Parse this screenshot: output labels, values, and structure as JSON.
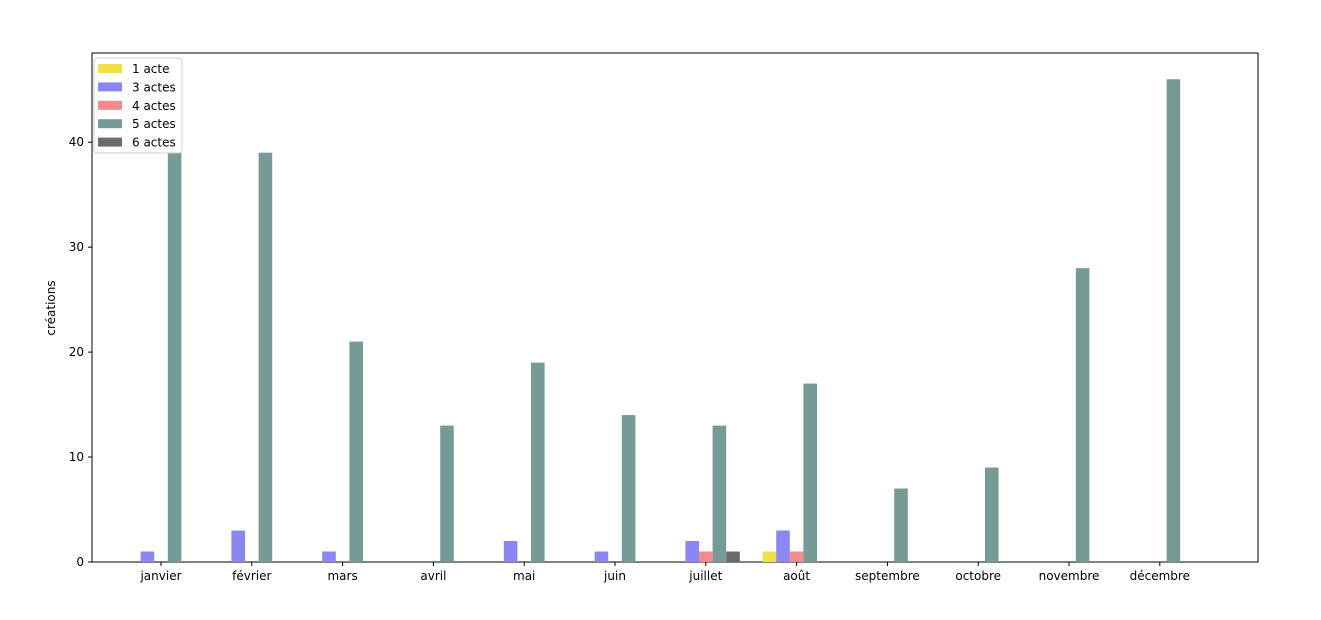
{
  "chart_data": {
    "type": "bar",
    "title": "",
    "xlabel": "",
    "ylabel": "créations",
    "ylim": [
      0,
      48.5
    ],
    "yticks": [
      0,
      10,
      20,
      30,
      40
    ],
    "grid": false,
    "legend_position": "top-left",
    "categories": [
      "janvier",
      "février",
      "mars",
      "avril",
      "mai",
      "juin",
      "juillet",
      "août",
      "septembre",
      "octobre",
      "novembre",
      "décembre"
    ],
    "series": [
      {
        "name": "1 acte",
        "color": "#f0e14a",
        "values": [
          0,
          0,
          0,
          0,
          0,
          0,
          0,
          1,
          0,
          0,
          0,
          0
        ]
      },
      {
        "name": "3 actes",
        "color": "#8c86f2",
        "values": [
          1,
          3,
          1,
          0,
          2,
          1,
          2,
          3,
          0,
          0,
          0,
          0
        ]
      },
      {
        "name": "4 actes",
        "color": "#f08c8c",
        "values": [
          0,
          0,
          0,
          0,
          0,
          0,
          1,
          1,
          0,
          0,
          0,
          0
        ]
      },
      {
        "name": "5 actes",
        "color": "#769b97",
        "values": [
          39,
          39,
          21,
          13,
          19,
          14,
          13,
          17,
          7,
          9,
          28,
          46
        ]
      },
      {
        "name": "6 actes",
        "color": "#6b6b6b",
        "values": [
          0,
          0,
          0,
          0,
          0,
          0,
          1,
          0,
          0,
          0,
          0,
          0
        ]
      }
    ]
  }
}
